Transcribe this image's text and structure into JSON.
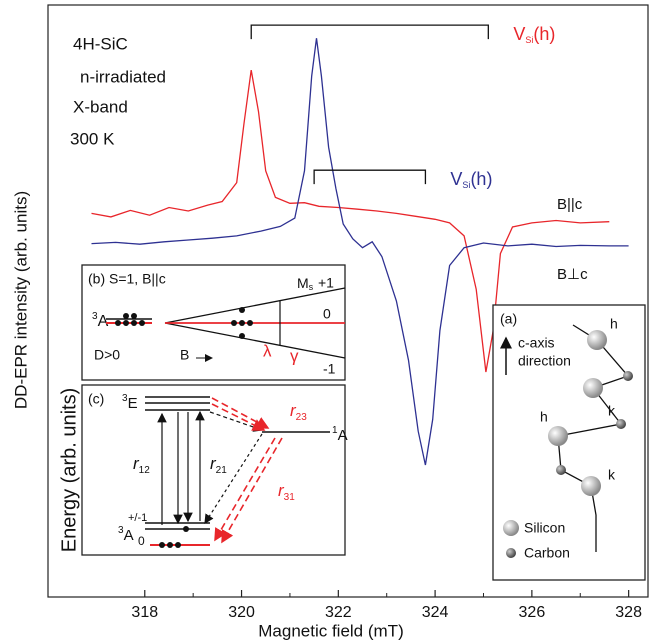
{
  "chart_data": {
    "type": "line",
    "x_label": "Magnetic field (mT)",
    "y_label": "DD-EPR intensity (arb. units)",
    "xlim": [
      316,
      328.4
    ],
    "ylim": [
      0,
      100
    ],
    "xticks": [
      318,
      320,
      322,
      324,
      326,
      328
    ],
    "sample_info": [
      "4H-SiC",
      "n-irradiated",
      "X-band",
      "300 K"
    ],
    "series": [
      {
        "name": "B||c",
        "color": "#e8262b",
        "x": [
          316.9,
          317.3,
          317.7,
          318.1,
          318.5,
          318.9,
          319.3,
          319.6,
          319.9,
          320.05,
          320.2,
          320.35,
          320.5,
          320.7,
          321.0,
          321.3,
          321.6,
          322.0,
          322.4,
          322.8,
          323.2,
          323.6,
          324.0,
          324.3,
          324.6,
          324.85,
          325.05,
          325.2,
          325.35,
          325.6,
          326.0,
          326.5,
          327.0,
          327.6
        ],
        "values": [
          64.8,
          64.2,
          65.3,
          64.5,
          65.8,
          65.2,
          66.2,
          66.8,
          70,
          80,
          89,
          82,
          72,
          67.5,
          66.5,
          66.6,
          66,
          65.8,
          65.5,
          65.2,
          64.8,
          64.3,
          63.8,
          63.2,
          61,
          52,
          38,
          45,
          58,
          62.5,
          63.2,
          63.6,
          63.2,
          63.4
        ]
      },
      {
        "name": "B⊥c",
        "color": "#2e3192",
        "x": [
          316.9,
          317.4,
          317.9,
          318.4,
          318.9,
          319.4,
          319.9,
          320.4,
          320.8,
          321.1,
          321.3,
          321.45,
          321.55,
          321.65,
          321.8,
          321.95,
          322.1,
          322.3,
          322.5,
          322.7,
          322.9,
          323.2,
          323.45,
          323.65,
          323.8,
          323.95,
          324.1,
          324.3,
          324.6,
          325.0,
          325.5,
          326.0,
          326.5,
          327.0,
          327.6,
          328.0
        ],
        "values": [
          59.7,
          59.9,
          59.6,
          60.0,
          60.3,
          60.6,
          61.0,
          61.8,
          62.6,
          64,
          72,
          88,
          94.4,
          88,
          76,
          69,
          63,
          60.5,
          59,
          60,
          57.5,
          50,
          40,
          28,
          22.3,
          30,
          45,
          56,
          59,
          59.8,
          59.3,
          59.6,
          59.2,
          59.4,
          59.3,
          59.3
        ]
      }
    ],
    "brackets": [
      {
        "main": "V",
        "sub": "Si",
        "suffix": "(h)",
        "color": "#e8262b",
        "x": [
          320.2,
          325.1
        ],
        "y": 96.6
      },
      {
        "main": "V",
        "sub": "Si",
        "suffix": "(h)",
        "color": "#2e3192",
        "x": [
          321.5,
          323.8
        ],
        "y": 72.1
      }
    ],
    "insets": {
      "b": {
        "title": "(b) S=1, B||c",
        "level_sup": "3",
        "level": "A",
        "condition": "D>0",
        "field": "B",
        "ms_main": "M",
        "ms_sub": "s",
        "plus": "+1",
        "zero": "0",
        "minus": "-1",
        "lambda": "λ",
        "gamma": "γ"
      },
      "c": {
        "title": "(c)",
        "energy_label": "Energy (arb. units)",
        "e_sup": "3",
        "e": "E",
        "a1_sup": "1",
        "a1": "A",
        "a3_sup": "3",
        "a3": "A",
        "pm": "+/-1",
        "zero": "0",
        "r": "r",
        "r12": "12",
        "r21": "21",
        "r23": "23",
        "r31": "31"
      },
      "a": {
        "title": "(a)",
        "axis1": "c-axis",
        "axis2": "direction",
        "h1": "h",
        "k1": "k",
        "h2": "h",
        "k2": "k",
        "silicon": "Silicon",
        "carbon": "Carbon"
      }
    }
  }
}
